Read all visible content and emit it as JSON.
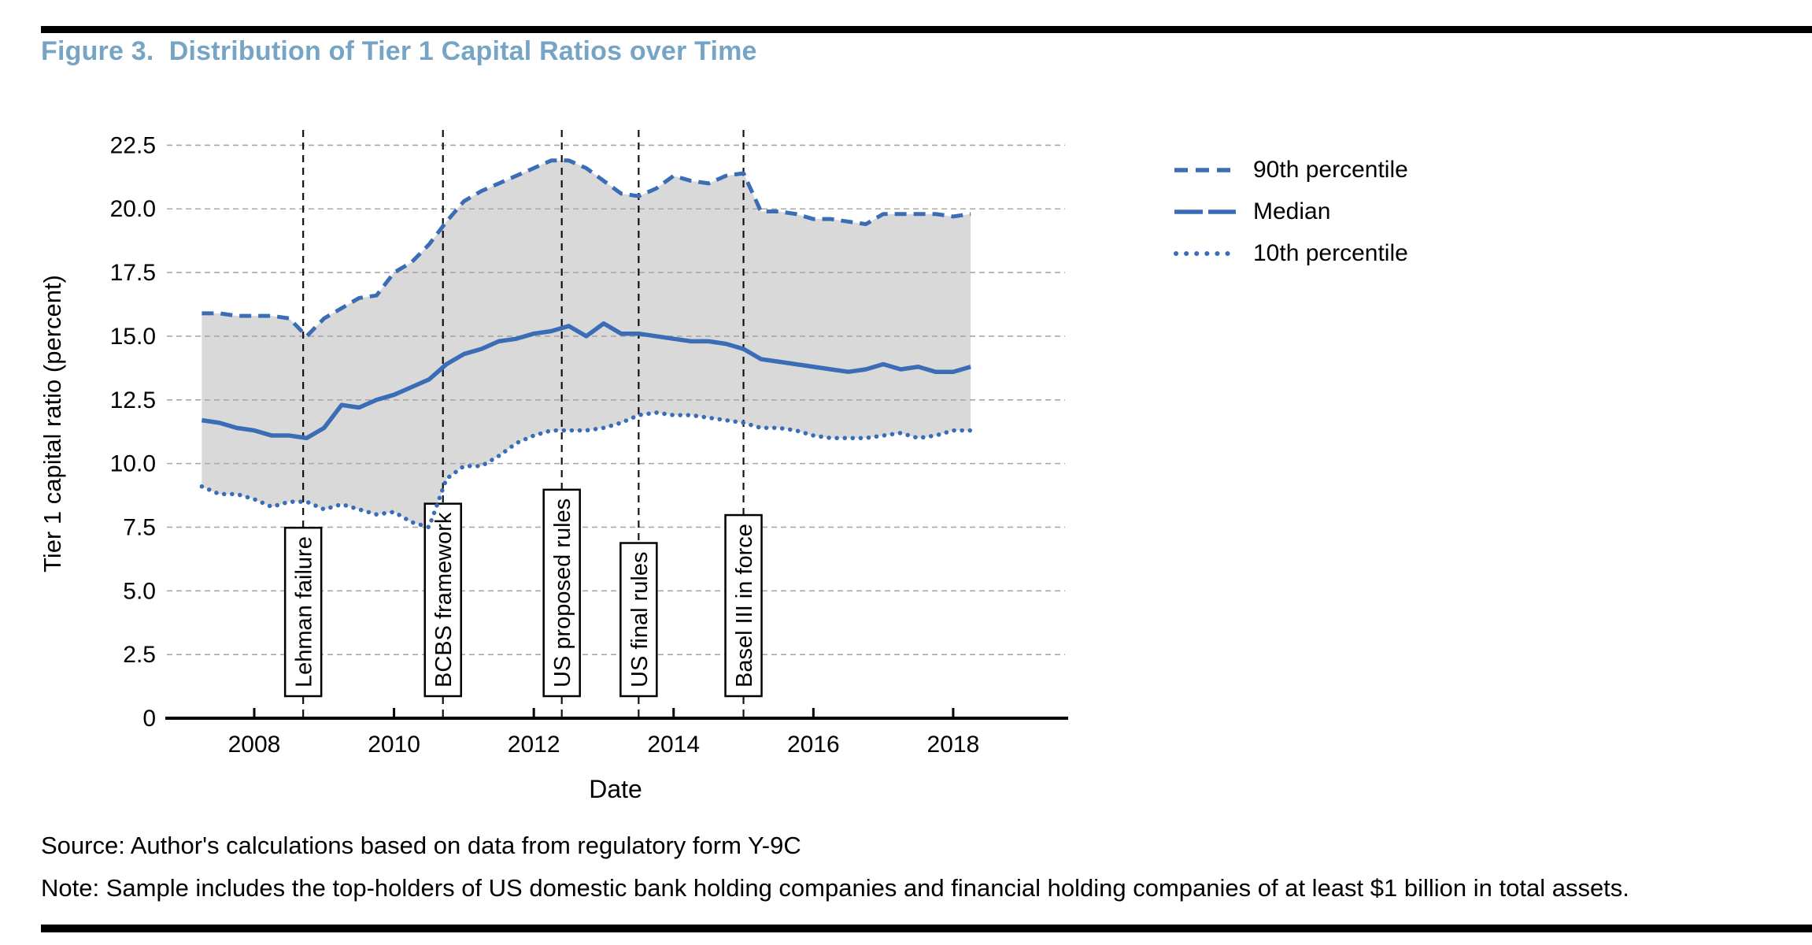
{
  "title": "Figure 3.  Distribution of Tier 1 Capital Ratios over Time",
  "source": "Source: Author's calculations based on data from regulatory form Y-9C",
  "note": "Note: Sample includes the top-holders of US domestic bank holding companies and financial holding companies of at least $1 billion in total assets.",
  "colors": {
    "line_blue": "#3a6db5",
    "title_blue": "#76a4c5",
    "band_gray": "#d9d9da",
    "grid_gray": "#a8a8a8",
    "event_line_black": "#111111",
    "axis_black": "#000000"
  },
  "chart_data": {
    "type": "line",
    "title": "Distribution of Tier 1 Capital Ratios over Time",
    "xlabel": "Date",
    "ylabel": "Tier 1 capital ratio (percent)",
    "xlim": [
      2006.75,
      2019.6
    ],
    "ylim": [
      0,
      23.1
    ],
    "xticks": [
      2008,
      2010,
      2012,
      2014,
      2016,
      2018
    ],
    "xtick_labels": [
      "2008",
      "2010",
      "2012",
      "2014",
      "2016",
      "2018"
    ],
    "yticks": [
      0,
      2.5,
      5,
      7.5,
      10,
      12.5,
      15,
      17.5,
      20,
      22.5
    ],
    "ytick_labels": [
      "0",
      "2.5",
      "5.0",
      "7.5",
      "10.0",
      "12.5",
      "15.0",
      "17.5",
      "20.0",
      "22.5"
    ],
    "grid": "horizontal dashed",
    "legend_position": "upper right, outside plot",
    "band": {
      "upper_series": "90th percentile",
      "lower_series": "10th percentile",
      "fill": "#d9d9da"
    },
    "x": [
      2007.25,
      2007.5,
      2007.75,
      2008,
      2008.25,
      2008.5,
      2008.75,
      2009,
      2009.25,
      2009.5,
      2009.75,
      2010,
      2010.25,
      2010.5,
      2010.75,
      2011,
      2011.25,
      2011.5,
      2011.75,
      2012,
      2012.25,
      2012.5,
      2012.75,
      2013,
      2013.25,
      2013.5,
      2013.75,
      2014,
      2014.25,
      2014.5,
      2014.75,
      2015,
      2015.25,
      2015.5,
      2015.75,
      2016,
      2016.25,
      2016.5,
      2016.75,
      2017,
      2017.25,
      2017.5,
      2017.75,
      2018,
      2018.25
    ],
    "series": [
      {
        "name": "90th percentile",
        "style": "dashed",
        "values": [
          15.9,
          15.9,
          15.8,
          15.8,
          15.8,
          15.7,
          15.0,
          15.7,
          16.1,
          16.5,
          16.6,
          17.5,
          17.9,
          18.6,
          19.5,
          20.3,
          20.7,
          21.0,
          21.3,
          21.6,
          21.9,
          21.9,
          21.6,
          21.1,
          20.6,
          20.5,
          20.8,
          21.3,
          21.1,
          21.0,
          21.3,
          21.4,
          19.9,
          19.9,
          19.8,
          19.6,
          19.6,
          19.5,
          19.4,
          19.8,
          19.8,
          19.8,
          19.8,
          19.7,
          19.8
        ]
      },
      {
        "name": "Median",
        "style": "solid",
        "values": [
          11.7,
          11.6,
          11.4,
          11.3,
          11.1,
          11.1,
          11.0,
          11.4,
          12.3,
          12.2,
          12.5,
          12.7,
          13.0,
          13.3,
          13.9,
          14.3,
          14.5,
          14.8,
          14.9,
          15.1,
          15.2,
          15.4,
          15.0,
          15.5,
          15.1,
          15.1,
          15.0,
          14.9,
          14.8,
          14.8,
          14.7,
          14.5,
          14.1,
          14.0,
          13.9,
          13.8,
          13.7,
          13.6,
          13.7,
          13.9,
          13.7,
          13.8,
          13.6,
          13.6,
          13.8
        ]
      },
      {
        "name": "10th percentile",
        "style": "dotted",
        "values": [
          9.1,
          8.8,
          8.8,
          8.6,
          8.3,
          8.5,
          8.5,
          8.2,
          8.4,
          8.2,
          8.0,
          8.1,
          7.7,
          7.5,
          9.4,
          9.9,
          9.9,
          10.3,
          10.8,
          11.1,
          11.3,
          11.3,
          11.3,
          11.4,
          11.6,
          11.9,
          12.0,
          11.9,
          11.9,
          11.8,
          11.7,
          11.6,
          11.4,
          11.4,
          11.3,
          11.1,
          11.0,
          11.0,
          11.0,
          11.1,
          11.2,
          11.0,
          11.1,
          11.3,
          11.3
        ]
      }
    ],
    "events": [
      {
        "x": 2008.7,
        "label": "Lehman failure"
      },
      {
        "x": 2010.7,
        "label": "BCBS framework"
      },
      {
        "x": 2012.4,
        "label": "US proposed rules"
      },
      {
        "x": 2013.5,
        "label": "US final rules"
      },
      {
        "x": 2015.0,
        "label": "Basel III in force"
      }
    ]
  }
}
